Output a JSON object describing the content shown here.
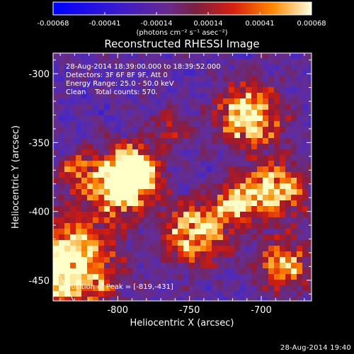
{
  "colorbar": {
    "ticks": [
      "-0.00068",
      "-0.00041",
      "-0.00014",
      "0.00014",
      "0.00041",
      "0.00068"
    ],
    "units_label": "(photons cm⁻² s⁻¹ asec⁻²)"
  },
  "chart_data": {
    "type": "heatmap",
    "title": "Reconstructed RHESSI Image",
    "xlabel": "Heliocentric X (arcsec)",
    "ylabel": "Heliocentric Y (arcsec)",
    "xlim": [
      -845,
      -665
    ],
    "ylim": [
      -465,
      -285
    ],
    "x_ticks": [
      "-800",
      "-750",
      "-700"
    ],
    "y_ticks": [
      "-300",
      "-350",
      "-400",
      "-450"
    ],
    "info": {
      "line1": "28-Aug-2014 18:39:00.000 to 18:39:52.000",
      "line2": "Detectors: 3F 6F 8F 9F, Att 0",
      "line3": "Energy Range: 25.0 - 50.0 keV",
      "line4": "Clean    Total counts: 570."
    },
    "peak_label": "Position of Peak = [-819,-431]",
    "colors": {
      "low": "#2020ff",
      "mid": "#6a2a8a",
      "high": "#ff3300",
      "peak": "#ffffaa"
    }
  },
  "footer": {
    "timestamp": "28-Aug-2014 19:40"
  }
}
